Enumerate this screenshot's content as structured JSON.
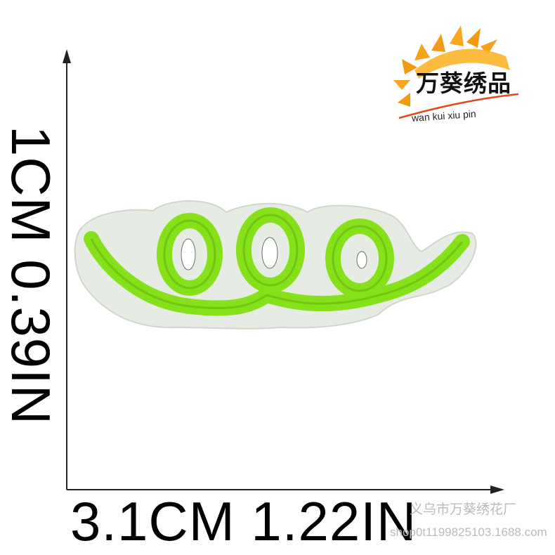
{
  "dimensions": {
    "vertical": "1CM 0.39IN",
    "horizontal": "3.1CM 1.22IN"
  },
  "brand": {
    "name_cn": "万葵绣品",
    "name_pinyin": "wan kui xiu pin"
  },
  "watermark": {
    "line1": "义乌市万葵绣花厂",
    "line2": "shop0t1199825103.1688.com"
  },
  "product": {
    "item": "embroidered loop patch",
    "thread_color": "#86e01a",
    "backing_color": "#e6ece4"
  }
}
